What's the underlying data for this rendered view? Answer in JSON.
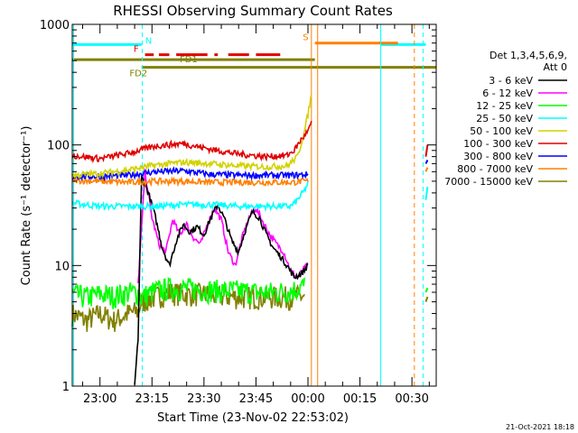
{
  "colors": {
    "3-6": "#000000",
    "6-12": "#ff00ff",
    "12-25": "#00ff00",
    "25-50": "#00ffff",
    "50-100": "#d2d200",
    "100-300": "#e00000",
    "300-800": "#0000ff",
    "800-7000": "#ff8000",
    "7000-15000": "#808000"
  },
  "footer": {
    "date": "21-Oct-2021 18:18"
  },
  "chart_data": {
    "type": "line",
    "title": "RHESSI Observing Summary Count Rates",
    "xlabel": "Start Time (23-Nov-02 22:53:02)",
    "ylabel": "Count Rate (s⁻¹ detector⁻¹)",
    "yscale": "log",
    "ylim": [
      1,
      1000
    ],
    "xlim_minutes": [
      -8,
      97
    ],
    "x_ticks": [
      {
        "t": 0,
        "label": "23:00"
      },
      {
        "t": 15,
        "label": "23:15"
      },
      {
        "t": 30,
        "label": "23:30"
      },
      {
        "t": 45,
        "label": "23:45"
      },
      {
        "t": 60,
        "label": "00:00"
      },
      {
        "t": 75,
        "label": "00:15"
      },
      {
        "t": 90,
        "label": "00:30"
      }
    ],
    "y_ticks": [
      {
        "v": 1,
        "label": "1"
      },
      {
        "v": 10,
        "label": "10"
      },
      {
        "v": 100,
        "label": "100"
      },
      {
        "v": 1000,
        "label": "1000"
      }
    ],
    "legend": {
      "position": "right",
      "header": [
        "Det 1,3,4,5,6,9,",
        "Att 0"
      ],
      "entries": [
        {
          "key": "3-6",
          "label": "3 - 6 keV"
        },
        {
          "key": "6-12",
          "label": "6 - 12 keV"
        },
        {
          "key": "12-25",
          "label": "12 - 25 keV"
        },
        {
          "key": "25-50",
          "label": "25 - 50 keV"
        },
        {
          "key": "50-100",
          "label": "50 - 100 keV"
        },
        {
          "key": "100-300",
          "label": "100 - 300 keV"
        },
        {
          "key": "300-800",
          "label": "300 - 800 keV"
        },
        {
          "key": "800-7000",
          "label": "800 - 7000 keV"
        },
        {
          "key": "7000-15000",
          "label": "7000 - 15000 keV"
        }
      ]
    },
    "series": [
      {
        "key": "7000-15000",
        "points": [
          [
            -8,
            4.0
          ],
          [
            -4,
            3.5
          ],
          [
            0,
            4.0
          ],
          [
            4,
            3.5
          ],
          [
            8,
            4.0
          ],
          [
            11,
            4.2
          ],
          [
            12,
            5.0
          ],
          [
            16,
            5.5
          ],
          [
            20,
            6.0
          ],
          [
            25,
            5.8
          ],
          [
            30,
            5.8
          ],
          [
            35,
            5.6
          ],
          [
            40,
            5.5
          ],
          [
            45,
            5.5
          ],
          [
            50,
            5.5
          ],
          [
            55,
            5.5
          ],
          [
            59,
            5.6
          ]
        ]
      },
      {
        "key": "12-25",
        "points": [
          [
            -8,
            5.8
          ],
          [
            -4,
            5.5
          ],
          [
            0,
            5.8
          ],
          [
            4,
            5.6
          ],
          [
            8,
            6.0
          ],
          [
            11,
            6.0
          ],
          [
            12,
            5.5
          ],
          [
            16,
            6.2
          ],
          [
            20,
            6.5
          ],
          [
            25,
            6.5
          ],
          [
            30,
            6.3
          ],
          [
            35,
            6.2
          ],
          [
            40,
            6.2
          ],
          [
            45,
            6.0
          ],
          [
            50,
            6.0
          ],
          [
            55,
            6.2
          ],
          [
            59,
            6.8
          ]
        ]
      },
      {
        "key": "6-12",
        "points": [
          [
            11,
            7.0
          ],
          [
            13,
            60
          ],
          [
            15,
            25
          ],
          [
            17,
            15
          ],
          [
            19,
            13
          ],
          [
            21,
            24
          ],
          [
            23,
            18
          ],
          [
            25,
            22
          ],
          [
            27,
            17
          ],
          [
            29,
            15
          ],
          [
            31,
            22
          ],
          [
            33,
            30
          ],
          [
            35,
            24
          ],
          [
            37,
            13
          ],
          [
            39,
            10
          ],
          [
            41,
            17
          ],
          [
            43,
            25
          ],
          [
            45,
            30
          ],
          [
            47,
            23
          ],
          [
            49,
            18
          ],
          [
            51,
            15
          ],
          [
            53,
            13
          ],
          [
            55,
            9.0
          ],
          [
            57,
            8.0
          ],
          [
            59,
            9.5
          ],
          [
            60,
            10
          ]
        ]
      },
      {
        "key": "3-6",
        "points": [
          [
            10,
            1.0
          ],
          [
            11,
            2.5
          ],
          [
            12,
            55
          ],
          [
            14,
            40
          ],
          [
            16,
            25
          ],
          [
            18,
            14
          ],
          [
            20,
            10
          ],
          [
            22,
            16
          ],
          [
            24,
            22
          ],
          [
            26,
            19
          ],
          [
            28,
            21
          ],
          [
            30,
            18
          ],
          [
            32,
            25
          ],
          [
            34,
            32
          ],
          [
            36,
            24
          ],
          [
            38,
            16
          ],
          [
            40,
            13
          ],
          [
            42,
            20
          ],
          [
            44,
            28
          ],
          [
            46,
            25
          ],
          [
            48,
            18
          ],
          [
            50,
            14
          ],
          [
            52,
            12
          ],
          [
            54,
            10
          ],
          [
            56,
            8.0
          ],
          [
            58,
            8.5
          ],
          [
            60,
            10
          ]
        ]
      },
      {
        "key": "25-50",
        "points": [
          [
            -8,
            33
          ],
          [
            0,
            31
          ],
          [
            8,
            31
          ],
          [
            16,
            31
          ],
          [
            24,
            32
          ],
          [
            32,
            32
          ],
          [
            40,
            31
          ],
          [
            48,
            31
          ],
          [
            55,
            31
          ],
          [
            57,
            35
          ],
          [
            59,
            42
          ],
          [
            60,
            48
          ]
        ]
      },
      {
        "key": "800-7000",
        "points": [
          [
            -8,
            51
          ],
          [
            0,
            50
          ],
          [
            8,
            49
          ],
          [
            16,
            50
          ],
          [
            24,
            50
          ],
          [
            32,
            49
          ],
          [
            40,
            49
          ],
          [
            48,
            49
          ],
          [
            55,
            49
          ],
          [
            60,
            50
          ]
        ]
      },
      {
        "key": "300-800",
        "points": [
          [
            -8,
            55
          ],
          [
            0,
            55
          ],
          [
            8,
            56
          ],
          [
            16,
            60
          ],
          [
            24,
            61
          ],
          [
            32,
            57
          ],
          [
            40,
            56
          ],
          [
            48,
            56
          ],
          [
            55,
            56
          ],
          [
            60,
            57
          ]
        ]
      },
      {
        "key": "50-100",
        "points": [
          [
            -8,
            56
          ],
          [
            0,
            58
          ],
          [
            8,
            62
          ],
          [
            16,
            68
          ],
          [
            24,
            72
          ],
          [
            32,
            70
          ],
          [
            40,
            67
          ],
          [
            48,
            66
          ],
          [
            54,
            67
          ],
          [
            57,
            80
          ],
          [
            59,
            130
          ],
          [
            60,
            180
          ],
          [
            61,
            260
          ]
        ]
      },
      {
        "key": "100-300",
        "points": [
          [
            -8,
            82
          ],
          [
            0,
            77
          ],
          [
            8,
            85
          ],
          [
            16,
            98
          ],
          [
            24,
            103
          ],
          [
            32,
            92
          ],
          [
            40,
            84
          ],
          [
            48,
            80
          ],
          [
            54,
            82
          ],
          [
            56,
            90
          ],
          [
            58,
            110
          ],
          [
            60,
            130
          ],
          [
            61,
            150
          ]
        ]
      }
    ],
    "right_stubs": [
      {
        "key": "100-300",
        "points": [
          [
            94,
            80
          ],
          [
            94.5,
            100
          ]
        ]
      },
      {
        "key": "300-800",
        "points": [
          [
            94,
            70
          ],
          [
            94.5,
            75
          ]
        ]
      },
      {
        "key": "800-7000",
        "points": [
          [
            94,
            60
          ],
          [
            94.5,
            65
          ]
        ]
      },
      {
        "key": "25-50",
        "points": [
          [
            94,
            35
          ],
          [
            94.5,
            45
          ]
        ]
      },
      {
        "key": "12-25",
        "points": [
          [
            94,
            6
          ],
          [
            94.5,
            6.5
          ]
        ]
      },
      {
        "key": "7000-15000",
        "points": [
          [
            94,
            5
          ],
          [
            94.5,
            5.5
          ]
        ]
      }
    ],
    "flags": [
      {
        "label": "N",
        "key": "25-50",
        "y": 680,
        "segments": [
          [
            -8,
            12
          ],
          [
            81,
            94
          ]
        ]
      },
      {
        "label": "F",
        "key": "100-300",
        "y": 560,
        "segments": [
          [
            13,
            15.5
          ],
          [
            17,
            20
          ],
          [
            22,
            31
          ],
          [
            33,
            34
          ],
          [
            37,
            43
          ],
          [
            45,
            52
          ]
        ]
      },
      {
        "label": "S",
        "key": "800-7000",
        "y": 700,
        "segments": [
          [
            62,
            86
          ]
        ]
      },
      {
        "label": "FD1",
        "key": "7000-15000",
        "y": 510,
        "segments": [
          [
            -8,
            62
          ]
        ]
      },
      {
        "label": "FD2",
        "key": "7000-15000",
        "y": 440,
        "segments": [
          [
            12,
            97
          ]
        ]
      }
    ],
    "vlines": [
      {
        "t": -7.6,
        "key": "25-50",
        "style": "solid"
      },
      {
        "t": 12.2,
        "key": "25-50",
        "style": "dashed"
      },
      {
        "t": 81,
        "key": "25-50",
        "style": "solid"
      },
      {
        "t": 93.2,
        "key": "25-50",
        "style": "dashed"
      },
      {
        "t": 61,
        "key": "800-7000",
        "style": "solid"
      },
      {
        "t": 62.8,
        "key": "800-7000",
        "style": "solid"
      },
      {
        "t": 90.7,
        "key": "800-7000",
        "style": "dashed"
      }
    ]
  }
}
